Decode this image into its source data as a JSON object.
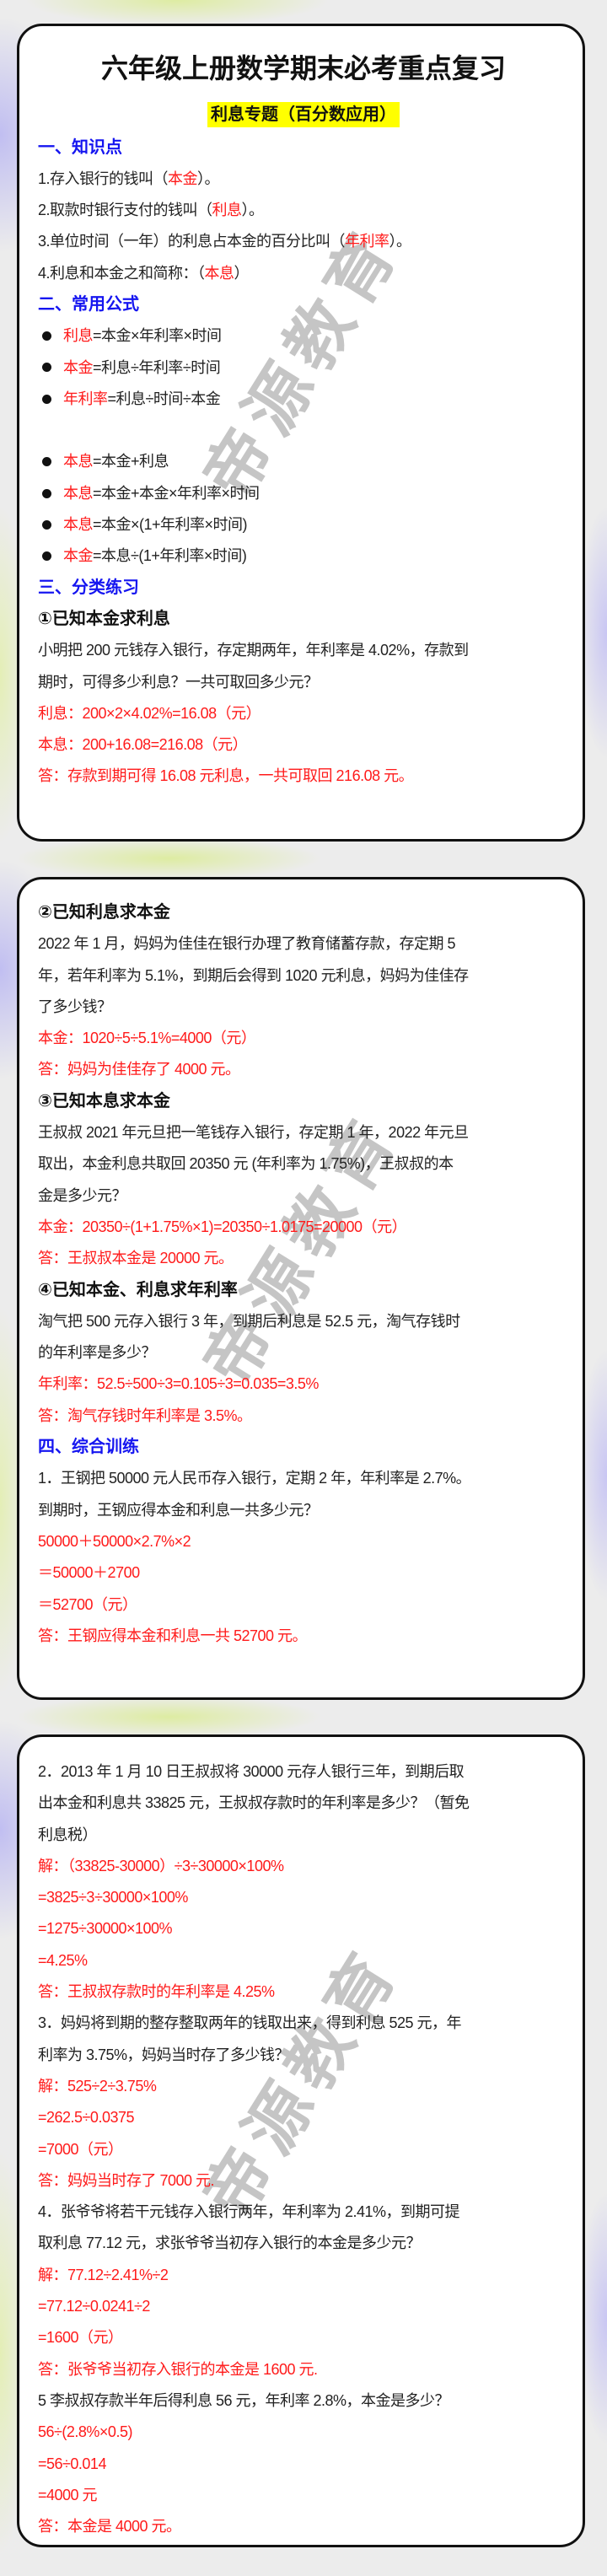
{
  "watermark": "帝源教育",
  "colors": {
    "accent_red": "#ff1a1a",
    "heading_blue": "#1515f0",
    "highlight": "#ffff00"
  },
  "cards": [
    {
      "lines": [
        {
          "type": "title",
          "segs": [
            {
              "text": "六年级上册数学期末必考重点复习"
            }
          ]
        },
        {
          "type": "subtitle",
          "segs": [
            {
              "text": "利息专题（百分数应用）"
            }
          ]
        },
        {
          "type": "heading",
          "segs": [
            {
              "text": "一、知识点"
            }
          ]
        },
        {
          "type": "text",
          "segs": [
            {
              "text": "1.存入银行的钱叫（"
            },
            {
              "text": "本金",
              "red": true
            },
            {
              "text": "）。"
            }
          ]
        },
        {
          "type": "text",
          "segs": [
            {
              "text": "2.取款时银行支付的钱叫（"
            },
            {
              "text": "利息",
              "red": true
            },
            {
              "text": "）。"
            }
          ]
        },
        {
          "type": "text",
          "segs": [
            {
              "text": "3.单位时间（一年）的利息占本金的百分比叫（"
            },
            {
              "text": "年利率",
              "red": true
            },
            {
              "text": "）。"
            }
          ]
        },
        {
          "type": "text",
          "segs": [
            {
              "text": "4.利息和本金之和简称：（"
            },
            {
              "text": "本息",
              "red": true
            },
            {
              "text": "）"
            }
          ]
        },
        {
          "type": "heading",
          "segs": [
            {
              "text": "二、常用公式"
            }
          ]
        },
        {
          "type": "bullet",
          "segs": [
            {
              "text": "利息",
              "red": true
            },
            {
              "text": "=本金×年利率×时间"
            }
          ]
        },
        {
          "type": "bullet",
          "segs": [
            {
              "text": "本金",
              "red": true
            },
            {
              "text": "=利息÷年利率÷时间"
            }
          ]
        },
        {
          "type": "bullet",
          "segs": [
            {
              "text": "年利率",
              "red": true
            },
            {
              "text": "=利息÷时间÷本金"
            }
          ]
        },
        {
          "type": "blank",
          "segs": []
        },
        {
          "type": "bullet",
          "segs": [
            {
              "text": "本息",
              "red": true
            },
            {
              "text": "=本金+利息"
            }
          ]
        },
        {
          "type": "bullet",
          "segs": [
            {
              "text": "本息",
              "red": true
            },
            {
              "text": "=本金+本金×年利率×时间"
            }
          ]
        },
        {
          "type": "bullet",
          "segs": [
            {
              "text": "本息",
              "red": true
            },
            {
              "text": "=本金×(1+年利率×时间)"
            }
          ]
        },
        {
          "type": "bullet",
          "segs": [
            {
              "text": "本金",
              "red": true
            },
            {
              "text": "=本息÷(1+年利率×时间)"
            }
          ]
        },
        {
          "type": "heading",
          "segs": [
            {
              "text": "三、分类练习"
            }
          ]
        },
        {
          "type": "subheading",
          "segs": [
            {
              "text": "①已知本金求利息"
            }
          ]
        },
        {
          "type": "text",
          "segs": [
            {
              "text": "小明把 200 元钱存入银行，存定期两年，年利率是 4.02%，存款到"
            }
          ]
        },
        {
          "type": "text",
          "segs": [
            {
              "text": "期时，可得多少利息？一共可取回多少元？"
            }
          ]
        },
        {
          "type": "red",
          "segs": [
            {
              "text": "利息：200×2×4.02%=16.08（元）"
            }
          ]
        },
        {
          "type": "red",
          "segs": [
            {
              "text": "本息：200+16.08=216.08（元）"
            }
          ]
        },
        {
          "type": "red",
          "segs": [
            {
              "text": "答：存款到期可得 16.08 元利息，一共可取回 216.08 元。"
            }
          ]
        }
      ]
    },
    {
      "lines": [
        {
          "type": "subheading",
          "segs": [
            {
              "text": "②已知利息求本金"
            }
          ]
        },
        {
          "type": "text",
          "segs": [
            {
              "text": "2022 年 1 月，妈妈为佳佳在银行办理了教育储蓄存款，存定期 5"
            }
          ]
        },
        {
          "type": "text",
          "segs": [
            {
              "text": "年，若年利率为 5.1%，到期后会得到 1020 元利息，妈妈为佳佳存"
            }
          ]
        },
        {
          "type": "text",
          "segs": [
            {
              "text": "了多少钱？"
            }
          ]
        },
        {
          "type": "red",
          "segs": [
            {
              "text": "本金：1020÷5÷5.1%=4000（元）"
            }
          ]
        },
        {
          "type": "red",
          "segs": [
            {
              "text": "答：妈妈为佳佳存了 4000 元。"
            }
          ]
        },
        {
          "type": "subheading",
          "segs": [
            {
              "text": "③已知本息求本金"
            }
          ]
        },
        {
          "type": "text",
          "segs": [
            {
              "text": "王叔叔 2021 年元旦把一笔钱存入银行，存定期 1 年，2022 年元旦"
            }
          ]
        },
        {
          "type": "text",
          "segs": [
            {
              "text": "取出，本金利息共取回 20350 元 (年利率为 1.75%)，王叔叔的本"
            }
          ]
        },
        {
          "type": "text",
          "segs": [
            {
              "text": "金是多少元？"
            }
          ]
        },
        {
          "type": "red",
          "segs": [
            {
              "text": "本金：20350÷(1+1.75%×1)=20350÷1.0175=20000（元）"
            }
          ]
        },
        {
          "type": "red",
          "segs": [
            {
              "text": "答：王叔叔本金是 20000 元。"
            }
          ]
        },
        {
          "type": "subheading",
          "segs": [
            {
              "text": "④已知本金、利息求年利率"
            }
          ]
        },
        {
          "type": "text",
          "segs": [
            {
              "text": "淘气把 500 元存入银行 3 年，到期后利息是 52.5 元，淘气存钱时"
            }
          ]
        },
        {
          "type": "text",
          "segs": [
            {
              "text": "的年利率是多少？"
            }
          ]
        },
        {
          "type": "red",
          "segs": [
            {
              "text": "年利率：52.5÷500÷3=0.105÷3=0.035=3.5%"
            }
          ]
        },
        {
          "type": "red",
          "segs": [
            {
              "text": "答：淘气存钱时年利率是 3.5%。"
            }
          ]
        },
        {
          "type": "heading",
          "segs": [
            {
              "text": "四、综合训练"
            }
          ]
        },
        {
          "type": "text",
          "segs": [
            {
              "text": "1．王钢把 50000 元人民币存入银行，定期 2 年，年利率是 2.7%。"
            }
          ]
        },
        {
          "type": "text",
          "segs": [
            {
              "text": "到期时，王钢应得本金和利息一共多少元？"
            }
          ]
        },
        {
          "type": "red",
          "segs": [
            {
              "text": "50000＋50000×2.7%×2"
            }
          ]
        },
        {
          "type": "red",
          "segs": [
            {
              "text": "＝50000＋2700"
            }
          ]
        },
        {
          "type": "red",
          "segs": [
            {
              "text": "＝52700（元）"
            }
          ]
        },
        {
          "type": "red",
          "segs": [
            {
              "text": "答：王钢应得本金和利息一共 52700 元。"
            }
          ]
        }
      ]
    },
    {
      "lines": [
        {
          "type": "text",
          "segs": [
            {
              "text": "2．2013 年 1 月 10 日王叔叔将 30000 元存人银行三年，到期后取"
            }
          ]
        },
        {
          "type": "text",
          "segs": [
            {
              "text": "出本金和利息共 33825 元，王叔叔存款时的年利率是多少？（暂免"
            }
          ]
        },
        {
          "type": "text",
          "segs": [
            {
              "text": "利息税）"
            }
          ]
        },
        {
          "type": "red",
          "segs": [
            {
              "text": "解：（33825-30000）÷3÷30000×100%"
            }
          ]
        },
        {
          "type": "red",
          "segs": [
            {
              "text": "=3825÷3÷30000×100%"
            }
          ]
        },
        {
          "type": "red",
          "segs": [
            {
              "text": "=1275÷30000×100%"
            }
          ]
        },
        {
          "type": "red",
          "segs": [
            {
              "text": "=4.25%"
            }
          ]
        },
        {
          "type": "red",
          "segs": [
            {
              "text": "答：王叔叔存款时的年利率是 4.25%"
            }
          ]
        },
        {
          "type": "text",
          "segs": [
            {
              "text": "3．妈妈将到期的整存整取两年的钱取出来，得到利息 525 元，年"
            }
          ]
        },
        {
          "type": "text",
          "segs": [
            {
              "text": "利率为 3.75%，妈妈当时存了多少钱？"
            }
          ]
        },
        {
          "type": "red",
          "segs": [
            {
              "text": "解：525÷2÷3.75%"
            }
          ]
        },
        {
          "type": "red",
          "segs": [
            {
              "text": "=262.5÷0.0375"
            }
          ]
        },
        {
          "type": "red",
          "segs": [
            {
              "text": "=7000（元）"
            }
          ]
        },
        {
          "type": "red",
          "segs": [
            {
              "text": "答：妈妈当时存了 7000 元."
            }
          ]
        },
        {
          "type": "text",
          "segs": [
            {
              "text": "4．张爷爷将若干元钱存入银行两年，年利率为 2.41%，到期可提"
            }
          ]
        },
        {
          "type": "text",
          "segs": [
            {
              "text": "取利息 77.12 元，求张爷爷当初存入银行的本金是多少元？"
            }
          ]
        },
        {
          "type": "red",
          "segs": [
            {
              "text": "解：77.12÷2.41%÷2"
            }
          ]
        },
        {
          "type": "red",
          "segs": [
            {
              "text": "=77.12÷0.0241÷2"
            }
          ]
        },
        {
          "type": "red",
          "segs": [
            {
              "text": "=1600（元）"
            }
          ]
        },
        {
          "type": "red",
          "segs": [
            {
              "text": "答：张爷爷当初存入银行的本金是 1600 元."
            }
          ]
        },
        {
          "type": "text",
          "segs": [
            {
              "text": "5 李叔叔存款半年后得利息 56 元，年利率 2.8%，本金是多少？"
            }
          ]
        },
        {
          "type": "red",
          "segs": [
            {
              "text": "56÷(2.8%×0.5)"
            }
          ]
        },
        {
          "type": "red",
          "segs": [
            {
              "text": "=56÷0.014"
            }
          ]
        },
        {
          "type": "red",
          "segs": [
            {
              "text": "=4000 元"
            }
          ]
        },
        {
          "type": "red",
          "segs": [
            {
              "text": "答：本金是 4000 元。"
            }
          ]
        }
      ]
    }
  ]
}
